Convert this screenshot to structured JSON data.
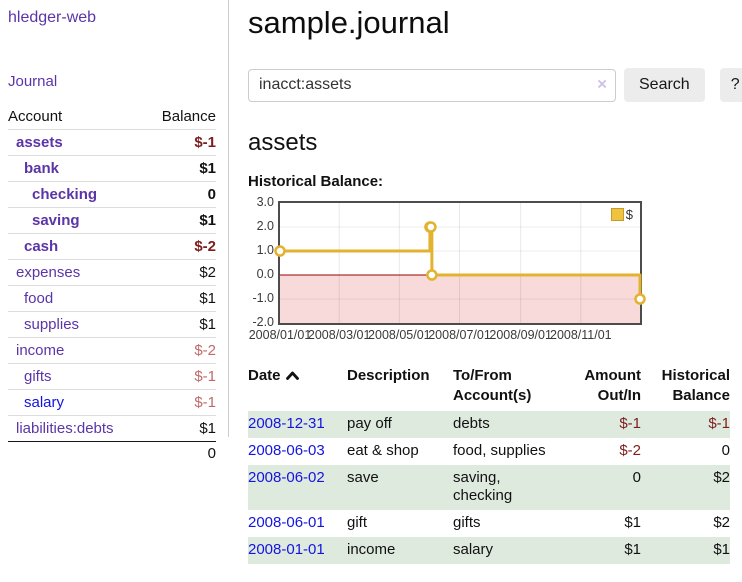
{
  "app": {
    "title": "hledger-web"
  },
  "sidebar": {
    "journal_label": "Journal",
    "accounts_table": {
      "headers": {
        "account": "Account",
        "balance": "Balance"
      },
      "rows": [
        {
          "name": "assets",
          "balance": "$-1",
          "depth": 1,
          "bold": true,
          "neg": "strong"
        },
        {
          "name": "bank",
          "balance": "$1",
          "depth": 2,
          "bold": true,
          "neg": "none"
        },
        {
          "name": "checking",
          "balance": "0",
          "depth": 3,
          "bold": true,
          "neg": "none"
        },
        {
          "name": "saving",
          "balance": "$1",
          "depth": 3,
          "bold": true,
          "neg": "none"
        },
        {
          "name": "cash",
          "balance": "$-2",
          "depth": 2,
          "bold": true,
          "neg": "strong"
        },
        {
          "name": "expenses",
          "balance": "$2",
          "depth": 1,
          "bold": false,
          "neg": "none"
        },
        {
          "name": "food",
          "balance": "$1",
          "depth": 2,
          "bold": false,
          "neg": "none"
        },
        {
          "name": "supplies",
          "balance": "$1",
          "depth": 2,
          "bold": false,
          "neg": "none"
        },
        {
          "name": "income",
          "balance": "$-2",
          "depth": 1,
          "bold": false,
          "neg": "soft"
        },
        {
          "name": "gifts",
          "balance": "$-1",
          "depth": 2,
          "bold": false,
          "neg": "soft"
        },
        {
          "name": "salary",
          "balance": "$-1",
          "depth": 2,
          "bold": false,
          "neg": "soft",
          "link_color": "blue"
        },
        {
          "name": "liabilities:debts",
          "balance": "$1",
          "depth": 1,
          "bold": false,
          "neg": "none"
        }
      ],
      "total": "0"
    }
  },
  "main": {
    "title": "sample.journal",
    "search": {
      "value": "inacct:assets",
      "clear_icon": "×",
      "button_label": "Search",
      "help_label": "?"
    },
    "account_heading": "assets"
  },
  "chart_data": {
    "type": "line",
    "title": "Historical Balance:",
    "step": true,
    "grid": true,
    "legend_position": "top-right",
    "x_min_date": "2008-01-01",
    "x_max_date": "2008-12-31",
    "xtick_dates": [
      "2008-01-01",
      "2008-03-01",
      "2008-05-01",
      "2008-07-01",
      "2008-09-01",
      "2008-11-01"
    ],
    "xtick_labels": [
      "2008/01/01",
      "2008/03/01",
      "2008/05/01",
      "2008/07/01",
      "2008/09/01",
      "2008/11/01"
    ],
    "ylim": [
      -2,
      3
    ],
    "ytick_labels": [
      "3.0",
      "2.0",
      "1.0",
      "0.0",
      "-1.0",
      "-2.0"
    ],
    "zero_line_color": "#990000",
    "negative_region_color": "#f9dada",
    "series": [
      {
        "name": "$",
        "color": "#e3b230",
        "marker": "open-circle",
        "points": [
          {
            "date": "2008-01-01",
            "value": 1
          },
          {
            "date": "2008-06-01",
            "value": 2
          },
          {
            "date": "2008-06-02",
            "value": 2
          },
          {
            "date": "2008-06-03",
            "value": 0
          },
          {
            "date": "2008-12-31",
            "value": -1
          }
        ]
      }
    ],
    "legend": {
      "label": "$",
      "fill": "#edc340",
      "border": "#c9992a"
    }
  },
  "register": {
    "headers": {
      "date": "Date",
      "description": "Description",
      "accounts": "To/From Account(s)",
      "amount": "Amount Out/In",
      "balance": "Historical Balance"
    },
    "rows": [
      {
        "date": "2008-12-31",
        "description": "pay off",
        "accounts": "debts",
        "amount": "$-1",
        "balance": "$-1",
        "amount_negative": true,
        "balance_negative": true
      },
      {
        "date": "2008-06-03",
        "description": "eat & shop",
        "accounts": "food, supplies",
        "amount": "$-2",
        "balance": "0",
        "amount_negative": true,
        "balance_negative": false
      },
      {
        "date": "2008-06-02",
        "description": "save",
        "accounts": "saving,\nchecking",
        "amount": "0",
        "balance": "$2",
        "amount_negative": false,
        "balance_negative": false
      },
      {
        "date": "2008-06-01",
        "description": "gift",
        "accounts": "gifts",
        "amount": "$1",
        "balance": "$2",
        "amount_negative": false,
        "balance_negative": false
      },
      {
        "date": "2008-01-01",
        "description": "income",
        "accounts": "salary",
        "amount": "$1",
        "balance": "$1",
        "amount_negative": false,
        "balance_negative": false
      }
    ]
  }
}
